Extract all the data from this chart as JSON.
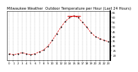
{
  "title": "Milwaukee Weather  Outdoor Temperature per Hour (Last 24 Hours)",
  "hours": [
    0,
    1,
    2,
    3,
    4,
    5,
    6,
    7,
    8,
    9,
    10,
    11,
    12,
    13,
    14,
    15,
    16,
    17,
    18,
    19,
    20,
    21,
    22,
    23
  ],
  "temps": [
    22,
    21,
    22,
    23,
    22,
    21,
    22,
    24,
    26,
    30,
    36,
    43,
    50,
    56,
    60,
    62,
    60,
    55,
    50,
    44,
    40,
    38,
    36,
    35
  ],
  "line_color": "#dd0000",
  "marker_color": "#000000",
  "bg_color": "#ffffff",
  "grid_color": "#aaaaaa",
  "title_color": "#000000",
  "ylim_min": 15,
  "ylim_max": 67,
  "yticks": [
    20,
    25,
    30,
    35,
    40,
    45,
    50,
    55,
    60,
    65
  ],
  "title_fontsize": 3.8,
  "tick_fontsize": 2.8
}
